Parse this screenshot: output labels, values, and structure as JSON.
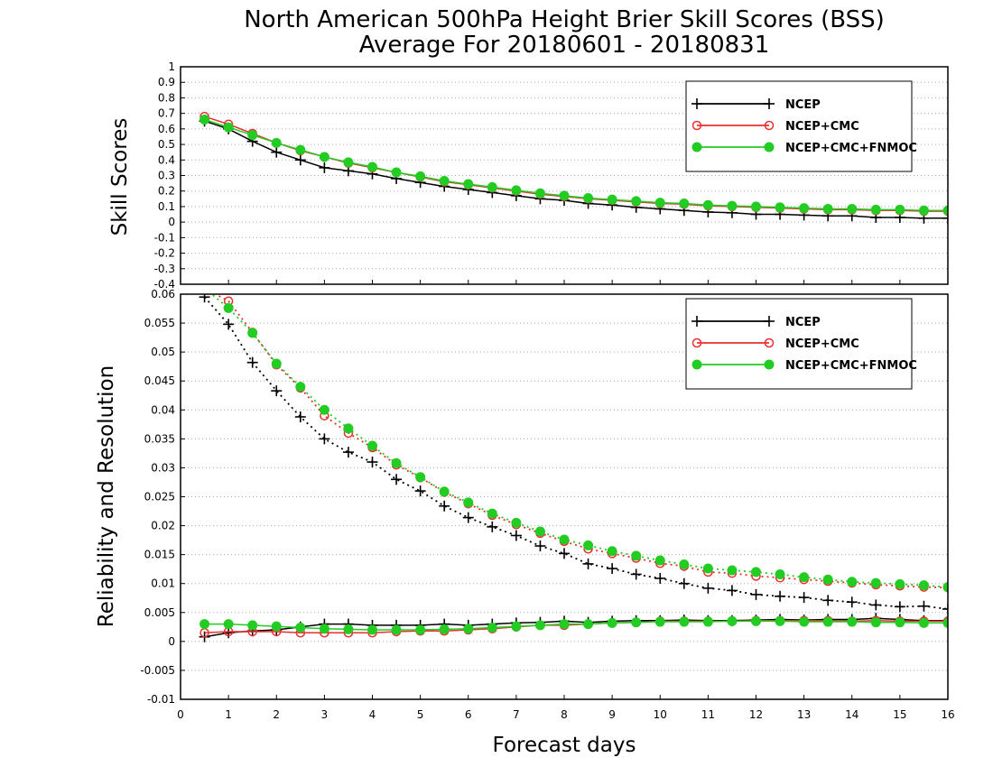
{
  "title": {
    "line1": "North American 500hPa Height Brier Skill Scores (BSS)",
    "line2": "Average For 20180601 - 20180831"
  },
  "colors": {
    "NCEP": "#000000",
    "NCEP+CMC": "#e8302f",
    "NCEP+CMC+FNMOC": "#22cc22",
    "grid": "#aaaaaa"
  },
  "chart_data": [
    {
      "type": "line",
      "panel": "top",
      "ylabel": "Skill Scores",
      "xlabel": "",
      "xlim": [
        0,
        16
      ],
      "ylim": [
        -0.4,
        1
      ],
      "yticks": [
        -0.4,
        -0.3,
        -0.2,
        -0.1,
        0,
        0.1,
        0.2,
        0.3,
        0.4,
        0.5,
        0.6,
        0.7,
        0.8,
        0.9,
        1
      ],
      "ytick_labels": [
        "-0.4",
        "-0.3",
        "-0.2",
        "-0.1",
        "0",
        "0.1",
        "0.2",
        "0.3",
        "0.4",
        "0.5",
        "0.6",
        "0.7",
        "0.8",
        "0.9",
        "1"
      ],
      "grid": true,
      "legend_position": "top-right",
      "legend": [
        "NCEP",
        "NCEP+CMC",
        "NCEP+CMC+FNMOC"
      ],
      "x": [
        0.5,
        1,
        1.5,
        2,
        2.5,
        3,
        3.5,
        4,
        4.5,
        5,
        5.5,
        6,
        6.5,
        7,
        7.5,
        8,
        8.5,
        9,
        9.5,
        10,
        10.5,
        11,
        11.5,
        12,
        12.5,
        13,
        13.5,
        14,
        14.5,
        15,
        15.5,
        16
      ],
      "series": [
        {
          "name": "NCEP",
          "marker": "plus",
          "line": "solid",
          "values": [
            0.65,
            0.6,
            0.52,
            0.45,
            0.4,
            0.35,
            0.33,
            0.31,
            0.28,
            0.255,
            0.23,
            0.21,
            0.19,
            0.17,
            0.15,
            0.14,
            0.12,
            0.11,
            0.095,
            0.085,
            0.075,
            0.065,
            0.06,
            0.05,
            0.05,
            0.045,
            0.04,
            0.04,
            0.03,
            0.03,
            0.025,
            0.025
          ]
        },
        {
          "name": "NCEP+CMC",
          "marker": "open-circle",
          "line": "solid",
          "values": [
            0.68,
            0.63,
            0.57,
            0.51,
            0.46,
            0.42,
            0.38,
            0.35,
            0.32,
            0.29,
            0.26,
            0.24,
            0.22,
            0.2,
            0.18,
            0.165,
            0.15,
            0.14,
            0.13,
            0.12,
            0.115,
            0.105,
            0.1,
            0.095,
            0.09,
            0.085,
            0.08,
            0.08,
            0.075,
            0.075,
            0.07,
            0.07
          ]
        },
        {
          "name": "NCEP+CMC+FNMOC",
          "marker": "filled-circle",
          "line": "solid",
          "values": [
            0.66,
            0.61,
            0.56,
            0.51,
            0.465,
            0.42,
            0.385,
            0.355,
            0.32,
            0.295,
            0.265,
            0.245,
            0.225,
            0.205,
            0.185,
            0.17,
            0.155,
            0.145,
            0.135,
            0.125,
            0.12,
            0.11,
            0.105,
            0.1,
            0.095,
            0.09,
            0.085,
            0.085,
            0.08,
            0.08,
            0.075,
            0.075
          ]
        }
      ]
    },
    {
      "type": "line",
      "panel": "bottom",
      "ylabel": "Reliability and Resolution",
      "xlabel": "Forecast days",
      "xlim": [
        0,
        16
      ],
      "ylim": [
        -0.01,
        0.06
      ],
      "yticks": [
        -0.01,
        -0.005,
        0,
        0.005,
        0.01,
        0.015,
        0.02,
        0.025,
        0.03,
        0.035,
        0.04,
        0.045,
        0.05,
        0.055,
        0.06
      ],
      "ytick_labels": [
        "-0.01",
        "-0.005",
        "0",
        "0.005",
        "0.01",
        "0.015",
        "0.02",
        "0.025",
        "0.03",
        "0.035",
        "0.04",
        "0.045",
        "0.05",
        "0.055",
        "0.06"
      ],
      "xticks": [
        0,
        1,
        2,
        3,
        4,
        5,
        6,
        7,
        8,
        9,
        10,
        11,
        12,
        13,
        14,
        15,
        16
      ],
      "xtick_labels": [
        "0",
        "1",
        "2",
        "3",
        "4",
        "5",
        "6",
        "7",
        "8",
        "9",
        "10",
        "11",
        "12",
        "13",
        "14",
        "15",
        "16"
      ],
      "grid": true,
      "legend_position": "top-right",
      "legend": [
        "NCEP",
        "NCEP+CMC",
        "NCEP+CMC+FNMOC"
      ],
      "x": [
        0.5,
        1,
        1.5,
        2,
        2.5,
        3,
        3.5,
        4,
        4.5,
        5,
        5.5,
        6,
        6.5,
        7,
        7.5,
        8,
        8.5,
        9,
        9.5,
        10,
        10.5,
        11,
        11.5,
        12,
        12.5,
        13,
        13.5,
        14,
        14.5,
        15,
        15.5,
        16
      ],
      "series": [
        {
          "name": "NCEP",
          "quantity": "resolution",
          "marker": "plus",
          "line": "dotted",
          "values": [
            0.0595,
            0.0548,
            0.0482,
            0.0433,
            0.0388,
            0.035,
            0.0327,
            0.031,
            0.028,
            0.026,
            0.0234,
            0.0214,
            0.0198,
            0.0183,
            0.0165,
            0.0152,
            0.0134,
            0.0126,
            0.0116,
            0.0109,
            0.01,
            0.0092,
            0.0088,
            0.0081,
            0.0078,
            0.0076,
            0.0071,
            0.0068,
            0.0063,
            0.006,
            0.0061,
            0.0056
          ]
        },
        {
          "name": "NCEP+CMC",
          "quantity": "resolution",
          "marker": "open-circle",
          "line": "dotted",
          "values": [
            0.061,
            0.0588,
            0.0534,
            0.0478,
            0.0438,
            0.039,
            0.036,
            0.0335,
            0.0305,
            0.0283,
            0.0258,
            0.0238,
            0.0218,
            0.0202,
            0.0187,
            0.0173,
            0.016,
            0.0152,
            0.0144,
            0.0135,
            0.013,
            0.012,
            0.0118,
            0.0113,
            0.011,
            0.0107,
            0.0104,
            0.0101,
            0.0098,
            0.0096,
            0.0094,
            0.0093
          ]
        },
        {
          "name": "NCEP+CMC+FNMOC",
          "quantity": "resolution",
          "marker": "filled-circle",
          "line": "dotted",
          "values": [
            0.061,
            0.0576,
            0.0533,
            0.048,
            0.044,
            0.04,
            0.0368,
            0.0338,
            0.0308,
            0.0284,
            0.0259,
            0.024,
            0.0221,
            0.0205,
            0.019,
            0.0176,
            0.0166,
            0.0156,
            0.0148,
            0.014,
            0.0133,
            0.0126,
            0.0123,
            0.012,
            0.0116,
            0.0111,
            0.0107,
            0.0103,
            0.0101,
            0.0099,
            0.0097,
            0.0094
          ]
        },
        {
          "name": "NCEP",
          "quantity": "reliability",
          "marker": "plus",
          "line": "solid",
          "values": [
            0.0008,
            0.0015,
            0.0018,
            0.002,
            0.0025,
            0.003,
            0.003,
            0.0028,
            0.0028,
            0.0028,
            0.003,
            0.0028,
            0.003,
            0.0032,
            0.0033,
            0.0035,
            0.0033,
            0.0035,
            0.0036,
            0.0036,
            0.0037,
            0.0036,
            0.0036,
            0.0037,
            0.0038,
            0.0037,
            0.0038,
            0.0038,
            0.004,
            0.0038,
            0.0036,
            0.0036
          ]
        },
        {
          "name": "NCEP+CMC",
          "quantity": "reliability",
          "marker": "open-circle",
          "line": "solid",
          "values": [
            0.0015,
            0.0017,
            0.0017,
            0.0017,
            0.0015,
            0.0015,
            0.0015,
            0.0015,
            0.0017,
            0.0018,
            0.0018,
            0.002,
            0.0022,
            0.0025,
            0.0028,
            0.0028,
            0.003,
            0.0032,
            0.0033,
            0.0035,
            0.0035,
            0.0035,
            0.0035,
            0.0036,
            0.0036,
            0.0036,
            0.0036,
            0.0035,
            0.0036,
            0.0035,
            0.0035,
            0.0035
          ]
        },
        {
          "name": "NCEP+CMC+FNMOC",
          "quantity": "reliability",
          "marker": "filled-circle",
          "line": "solid",
          "values": [
            0.003,
            0.003,
            0.0028,
            0.0026,
            0.0024,
            0.0022,
            0.0021,
            0.002,
            0.002,
            0.002,
            0.0021,
            0.0022,
            0.0024,
            0.0026,
            0.0028,
            0.003,
            0.003,
            0.0032,
            0.0033,
            0.0034,
            0.0034,
            0.0034,
            0.0035,
            0.0035,
            0.0035,
            0.0034,
            0.0034,
            0.0034,
            0.0033,
            0.0033,
            0.0032,
            0.0032
          ]
        }
      ]
    }
  ]
}
